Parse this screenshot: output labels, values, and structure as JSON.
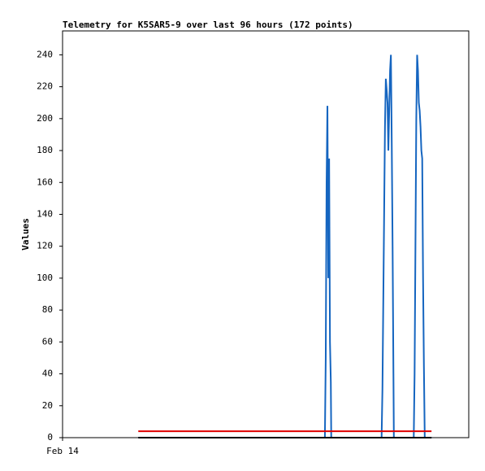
{
  "chart_data": {
    "type": "line",
    "title": "Telemetry for K5SAR5-9 over last 96 hours (172 points)",
    "y_label": "Values",
    "xlim": [
      0,
      96
    ],
    "xticks": [
      {
        "value": 0,
        "label": "Feb 14"
      }
    ],
    "ylim": [
      0,
      255
    ],
    "yticks": [
      0,
      20,
      40,
      60,
      80,
      100,
      120,
      140,
      160,
      180,
      200,
      220,
      240
    ],
    "grid": false,
    "series": [
      {
        "color": "#1565c0",
        "x": [
          17.9,
          62.0,
          62.2,
          62.4,
          62.6,
          62.8,
          63.0,
          63.2,
          63.4,
          63.5,
          75.4,
          75.6,
          75.8,
          76.0,
          76.2,
          76.4,
          76.6,
          76.8,
          77.0,
          77.2,
          77.4,
          77.6,
          77.8,
          78.0,
          78.2,
          78.3,
          83.0,
          83.2,
          83.4,
          83.6,
          83.8,
          84.0,
          84.2,
          84.4,
          84.6,
          84.8,
          85.0,
          85.2,
          85.4,
          85.6,
          87.2
        ],
        "values": [
          0,
          0,
          50,
          160,
          208,
          100,
          175,
          60,
          35,
          0,
          0,
          30,
          85,
          140,
          195,
          225,
          218,
          210,
          180,
          205,
          230,
          240,
          185,
          120,
          40,
          0,
          0,
          40,
          120,
          200,
          240,
          230,
          210,
          205,
          195,
          180,
          175,
          100,
          45,
          0,
          0
        ]
      },
      {
        "color": "#e00000",
        "x": [
          17.9,
          87.2
        ],
        "values": [
          4,
          4
        ]
      },
      {
        "color": "#000000",
        "x": [
          17.9,
          87.2
        ],
        "values": [
          0,
          0
        ]
      }
    ]
  }
}
